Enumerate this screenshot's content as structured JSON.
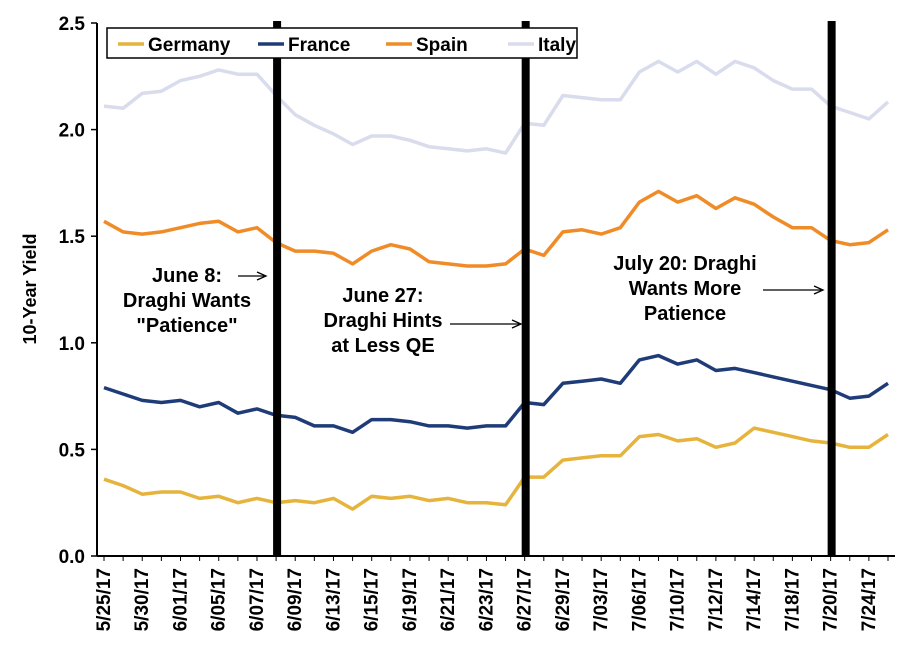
{
  "chart_data": {
    "type": "line",
    "title": "",
    "xlabel": "",
    "ylabel": "10-Year Yield",
    "ylim": [
      0,
      2.5
    ],
    "yticks": [
      "0.0",
      "0.5",
      "1.0",
      "1.5",
      "2.0",
      "2.5"
    ],
    "grid": false,
    "legend_position": "top",
    "x_tick_labels": [
      "5/25/17",
      "5/30/17",
      "6/01/17",
      "6/05/17",
      "6/07/17",
      "6/09/17",
      "6/13/17",
      "6/15/17",
      "6/19/17",
      "6/21/17",
      "6/23/17",
      "6/27/17",
      "6/29/17",
      "7/03/17",
      "7/06/17",
      "7/10/17",
      "7/12/17",
      "7/14/17",
      "7/18/17",
      "7/20/17",
      "7/24/17"
    ],
    "dates": [
      "5/25/17",
      "5/26/17",
      "5/30/17",
      "5/31/17",
      "6/01/17",
      "6/02/17",
      "6/05/17",
      "6/06/17",
      "6/07/17",
      "6/08/17",
      "6/09/17",
      "6/12/17",
      "6/13/17",
      "6/14/17",
      "6/15/17",
      "6/16/17",
      "6/19/17",
      "6/20/17",
      "6/21/17",
      "6/22/17",
      "6/23/17",
      "6/26/17",
      "6/27/17",
      "6/28/17",
      "6/29/17",
      "6/30/17",
      "7/03/17",
      "7/05/17",
      "7/06/17",
      "7/07/17",
      "7/10/17",
      "7/11/17",
      "7/12/17",
      "7/13/17",
      "7/14/17",
      "7/17/17",
      "7/18/17",
      "7/19/17",
      "7/20/17",
      "7/21/17",
      "7/24/17",
      "7/25/17"
    ],
    "series": [
      {
        "name": "Germany",
        "color": "#E6B43C",
        "values": [
          0.36,
          0.33,
          0.29,
          0.3,
          0.3,
          0.27,
          0.28,
          0.25,
          0.27,
          0.25,
          0.26,
          0.25,
          0.27,
          0.22,
          0.28,
          0.27,
          0.28,
          0.26,
          0.27,
          0.25,
          0.25,
          0.24,
          0.37,
          0.37,
          0.45,
          0.46,
          0.47,
          0.47,
          0.56,
          0.57,
          0.54,
          0.55,
          0.51,
          0.53,
          0.6,
          0.58,
          0.56,
          0.54,
          0.53,
          0.51,
          0.51,
          0.57
        ]
      },
      {
        "name": "France",
        "color": "#1F3C78",
        "values": [
          0.79,
          0.76,
          0.73,
          0.72,
          0.73,
          0.7,
          0.72,
          0.67,
          0.69,
          0.66,
          0.65,
          0.61,
          0.61,
          0.58,
          0.64,
          0.64,
          0.63,
          0.61,
          0.61,
          0.6,
          0.61,
          0.61,
          0.72,
          0.71,
          0.81,
          0.82,
          0.83,
          0.81,
          0.92,
          0.94,
          0.9,
          0.92,
          0.87,
          0.88,
          0.86,
          0.84,
          0.82,
          0.8,
          0.78,
          0.74,
          0.75,
          0.81
        ]
      },
      {
        "name": "Spain",
        "color": "#F08C28",
        "values": [
          1.57,
          1.52,
          1.51,
          1.52,
          1.54,
          1.56,
          1.57,
          1.52,
          1.54,
          1.47,
          1.43,
          1.43,
          1.42,
          1.37,
          1.43,
          1.46,
          1.44,
          1.38,
          1.37,
          1.36,
          1.36,
          1.37,
          1.44,
          1.41,
          1.52,
          1.53,
          1.51,
          1.54,
          1.66,
          1.71,
          1.66,
          1.69,
          1.63,
          1.68,
          1.65,
          1.59,
          1.54,
          1.54,
          1.48,
          1.46,
          1.47,
          1.53
        ]
      },
      {
        "name": "Italy",
        "color": "#D9DCEC",
        "values": [
          2.11,
          2.1,
          2.17,
          2.18,
          2.23,
          2.25,
          2.28,
          2.26,
          2.26,
          2.16,
          2.07,
          2.02,
          1.98,
          1.93,
          1.97,
          1.97,
          1.95,
          1.92,
          1.91,
          1.9,
          1.91,
          1.89,
          2.03,
          2.02,
          2.16,
          2.15,
          2.14,
          2.14,
          2.27,
          2.32,
          2.27,
          2.32,
          2.26,
          2.32,
          2.29,
          2.23,
          2.19,
          2.19,
          2.11,
          2.08,
          2.05,
          2.13
        ]
      }
    ],
    "event_markers": [
      {
        "date": "6/08/17",
        "label_lines": [
          "June 8:",
          "Draghi Wants",
          "\"Patience\""
        ]
      },
      {
        "date": "6/27/17",
        "label_lines": [
          "June 27:",
          "Draghi Hints",
          "at Less QE"
        ]
      },
      {
        "date": "7/20/17",
        "label_lines": [
          "July 20: Draghi",
          "Wants More",
          "Patience"
        ]
      }
    ]
  }
}
